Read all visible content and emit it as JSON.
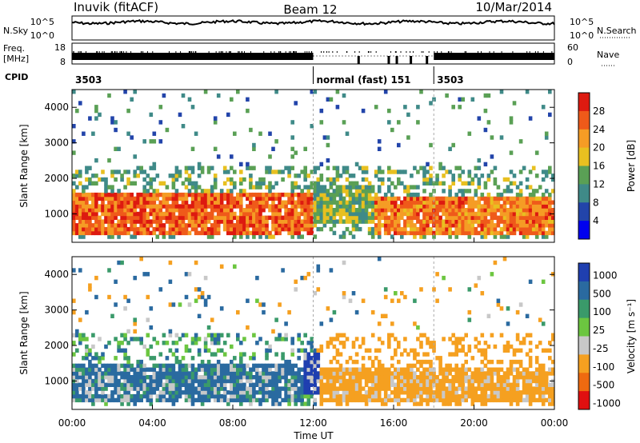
{
  "header": {
    "station": "Inuvik (fitACF)",
    "beam": "Beam 12",
    "date": "10/Mar/2014"
  },
  "housekeeping": {
    "nsky_label": "N.Sky",
    "nsky_ticks": [
      "10^5",
      "10^0"
    ],
    "nsearch_label": "N.Search",
    "nsearch_ticks": [
      "10^5",
      "10^0"
    ],
    "freq_label_1": "Freq.",
    "freq_label_2": "[MHz]",
    "freq_ticks": [
      "18",
      "8"
    ],
    "nave_label": "Nave",
    "nave_ticks": [
      "60",
      "0"
    ],
    "cpid_label": "CPID",
    "cpid_segments": [
      {
        "label": "3503",
        "start_hour": 0,
        "end_hour": 12
      },
      {
        "label": "normal (fast)  151",
        "start_hour": 12,
        "end_hour": 18
      },
      {
        "label": "3503",
        "start_hour": 18,
        "end_hour": 24
      }
    ]
  },
  "chart_data": [
    {
      "type": "heatmap",
      "quantity": "Power",
      "ylabel": "Slant Range [km]",
      "xlabel": "Time UT",
      "ylim": [
        200,
        4500
      ],
      "xlim_hours": [
        0,
        24
      ],
      "y_ticks": [
        1000,
        2000,
        3000,
        4000
      ],
      "x_tick_labels": [
        "00:00",
        "04:00",
        "08:00",
        "12:00",
        "16:00",
        "20:00",
        "00:00"
      ],
      "x_tick_hours": [
        0,
        4,
        8,
        12,
        16,
        20,
        24
      ],
      "colorbar_label": "Power [dB]",
      "colorbar_ticks": [
        4,
        8,
        12,
        16,
        20,
        24,
        28
      ],
      "colorbar_range": [
        0,
        32
      ],
      "colorbar_colors": [
        "#0000ee",
        "#2244aa",
        "#3f8a88",
        "#5aa055",
        "#e8c020",
        "#f59c25",
        "#ef5a1a",
        "#dd1a10"
      ],
      "dominant_bands": [
        {
          "from_hour": 0,
          "to_hour": 12,
          "range_km": [
            400,
            1500
          ],
          "power_db": 26
        },
        {
          "from_hour": 12,
          "to_hour": 15,
          "range_km": [
            700,
            1800
          ],
          "power_db": 14
        },
        {
          "from_hour": 15,
          "to_hour": 24,
          "range_km": [
            400,
            1400
          ],
          "power_db": 24
        }
      ]
    },
    {
      "type": "heatmap",
      "quantity": "Velocity",
      "ylabel": "Slant Range [km]",
      "xlabel": "Time UT",
      "ylim": [
        200,
        4500
      ],
      "xlim_hours": [
        0,
        24
      ],
      "y_ticks": [
        1000,
        2000,
        3000,
        4000
      ],
      "x_tick_labels": [
        "00:00",
        "04:00",
        "08:00",
        "12:00",
        "16:00",
        "20:00",
        "00:00"
      ],
      "x_tick_hours": [
        0,
        4,
        8,
        12,
        16,
        20,
        24
      ],
      "colorbar_label": "Velocity [m s⁻¹]",
      "colorbar_ticks": [
        "1000",
        "500",
        "100",
        "25",
        "-25",
        "-100",
        "-500",
        "-1000"
      ],
      "colorbar_colors": [
        "#1f3fb0",
        "#2a6aa0",
        "#3a9a6a",
        "#6cc640",
        "#c8c8c8",
        "#f5a020",
        "#ef6a10",
        "#e01010"
      ],
      "dominant_bands": [
        {
          "from_hour": 0,
          "to_hour": 11.5,
          "range_km": [
            400,
            1400
          ],
          "velocity": 200
        },
        {
          "from_hour": 11.5,
          "to_hour": 12.2,
          "range_km": [
            600,
            1800
          ],
          "velocity": 800
        },
        {
          "from_hour": 12.2,
          "to_hour": 24,
          "range_km": [
            400,
            1300
          ],
          "velocity": -300
        }
      ]
    }
  ]
}
